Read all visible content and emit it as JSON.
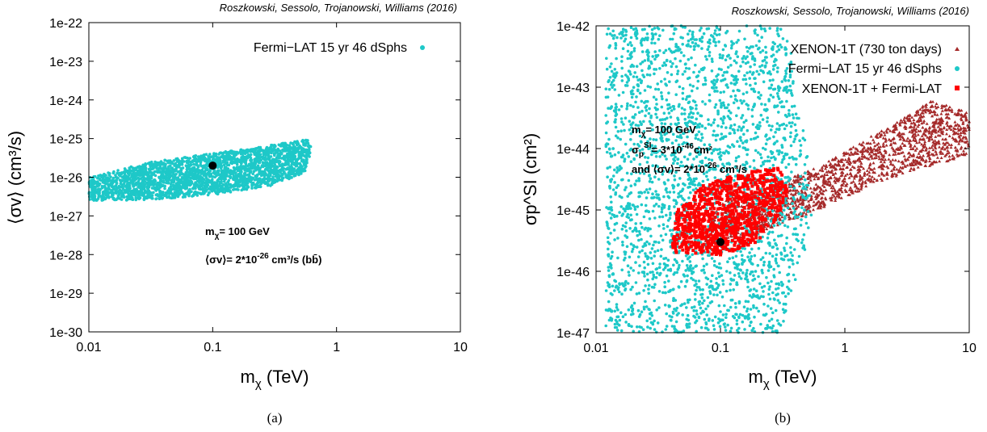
{
  "colors": {
    "fermi": "#1ec8c8",
    "xenon": "#a52a2a",
    "combined": "#ff0000",
    "benchmark": "#000000"
  },
  "chart_data": [
    {
      "type": "scatter",
      "panel_caption": "(a)",
      "credit": "Roszkowski, Sessolo, Trojanowski, Williams (2016)",
      "title": "",
      "xlabel": "m",
      "xlabel_sub": "χ",
      "xlabel_unit": " (TeV)",
      "ylabel": "⟨σv⟩ (cm³/s)",
      "x_scale": "log",
      "y_scale": "log",
      "xlim": [
        0.01,
        10
      ],
      "ylim": [
        1e-30,
        1e-22
      ],
      "x_tick_labels": [
        "0.01",
        "0.1",
        "1",
        "10"
      ],
      "y_tick_labels": [
        "1e-30",
        "1e-29",
        "1e-28",
        "1e-27",
        "1e-26",
        "1e-25",
        "1e-24",
        "1e-23",
        "1e-22"
      ],
      "legend_position": "top-right",
      "series": [
        {
          "name": "Fermi−LAT 15 yr 46 dSphs",
          "marker": "circle",
          "color_key": "fermi",
          "region": "narrow band from (0.01, ~2.5e-27 to ~1e-26) rising to (~0.65 TeV, ~3e-26 to ~9e-26)",
          "region_outline": [
            [
              0.01,
              2.5e-27
            ],
            [
              0.03,
              2.6e-27
            ],
            [
              0.1,
              3.5e-27
            ],
            [
              0.3,
              6e-27
            ],
            [
              0.55,
              1.3e-26
            ],
            [
              0.65,
              7e-26
            ],
            [
              0.6,
              9.5e-26
            ],
            [
              0.4,
              8e-26
            ],
            [
              0.2,
              5.5e-26
            ],
            [
              0.1,
              4.2e-26
            ],
            [
              0.03,
              2.4e-26
            ],
            [
              0.01,
              1e-26
            ]
          ]
        }
      ],
      "benchmark_point": {
        "x": 0.1,
        "y": 2e-26
      },
      "annotations": [
        {
          "text": "m",
          "sub": "χ",
          "rest": "= 100 GeV"
        },
        {
          "text": "⟨σv⟩= 2*10",
          "sup": "-26",
          "rest": " cm³/s (bb̄)"
        }
      ]
    },
    {
      "type": "scatter",
      "panel_caption": "(b)",
      "credit": "Roszkowski, Sessolo, Trojanowski, Williams (2016)",
      "title": "",
      "xlabel": "m",
      "xlabel_sub": "χ",
      "xlabel_unit": " (TeV)",
      "ylabel": "σp^SI (cm²)",
      "x_scale": "log",
      "y_scale": "log",
      "xlim": [
        0.01,
        10
      ],
      "ylim": [
        1e-47,
        1e-42
      ],
      "x_tick_labels": [
        "0.01",
        "0.1",
        "1",
        "10"
      ],
      "y_tick_labels": [
        "1e-47",
        "1e-46",
        "1e-45",
        "1e-44",
        "1e-43",
        "1e-42"
      ],
      "legend_position": "top-right",
      "series": [
        {
          "name": "XENON-1T (730 ton days)",
          "marker": "triangle",
          "color_key": "xenon",
          "region": "band from ~(0.08 TeV, 3e-46) to ~(10 TeV, 3e-44)",
          "region_outline": [
            [
              0.07,
              2.5e-46
            ],
            [
              0.2,
              4e-46
            ],
            [
              0.6,
              1e-45
            ],
            [
              2,
              3e-45
            ],
            [
              10,
              8e-45
            ],
            [
              10,
              4e-44
            ],
            [
              5,
              6e-44
            ],
            [
              2,
              2e-44
            ],
            [
              0.6,
              5e-45
            ],
            [
              0.2,
              2e-45
            ],
            [
              0.1,
              1.5e-45
            ]
          ]
        },
        {
          "name": "Fermi−LAT 15 yr 46 dSphs",
          "marker": "circle",
          "color_key": "fermi",
          "region": "broad vertical band over m_χ ≈ 0.01–0.5 TeV, entire y range 1e-47 to 1e-42",
          "region_outline": [
            [
              0.012,
              1e-47
            ],
            [
              0.3,
              1e-47
            ],
            [
              0.45,
              1e-46
            ],
            [
              0.55,
              1e-45
            ],
            [
              0.5,
              1e-44
            ],
            [
              0.4,
              1e-43
            ],
            [
              0.35,
              1e-42
            ],
            [
              0.012,
              1e-42
            ]
          ]
        },
        {
          "name": "XENON-1T + Fermi-LAT",
          "marker": "square",
          "color_key": "combined",
          "region": "compact blob around (0.04–0.3 TeV, 2e-46–5e-45)",
          "region_outline": [
            [
              0.04,
              2e-46
            ],
            [
              0.1,
              1.8e-46
            ],
            [
              0.2,
              3e-46
            ],
            [
              0.3,
              8e-46
            ],
            [
              0.35,
              2e-45
            ],
            [
              0.3,
              5e-45
            ],
            [
              0.15,
              4e-45
            ],
            [
              0.07,
              2.5e-45
            ],
            [
              0.045,
              1e-45
            ]
          ]
        }
      ],
      "benchmark_point": {
        "x": 0.1,
        "y": 3e-46
      },
      "annotations": [
        {
          "text": "m",
          "sub": "χ",
          "rest": "= 100 GeV"
        },
        {
          "text": "σ",
          "sub": "p",
          "sup": "SI",
          "rest": "= 3*10",
          "sup2": "-46",
          "rest2": "cm²"
        },
        {
          "text": "and ⟨σv⟩= 2*10",
          "sup": "-26",
          "rest": " cm³/s"
        }
      ]
    }
  ]
}
